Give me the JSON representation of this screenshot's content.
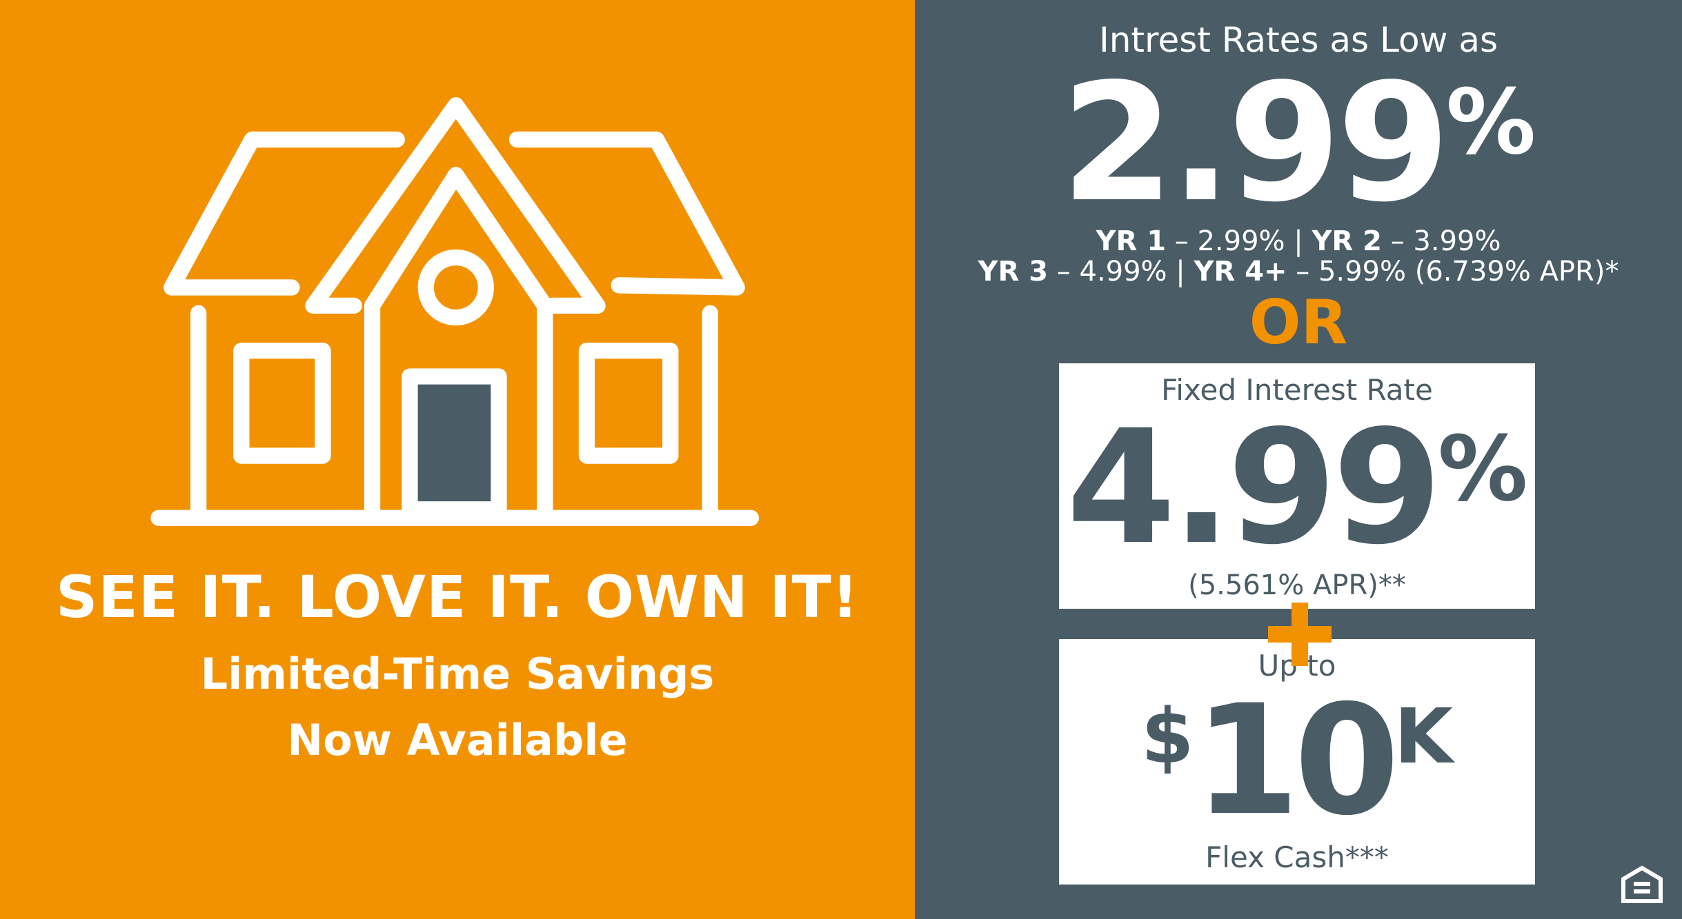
{
  "colors": {
    "orange": "#F39200",
    "slate": "#4A5C66",
    "white": "#FFFFFF"
  },
  "left": {
    "illustration": "house-outline-icon",
    "headline": "SEE IT. LOVE IT. OWN IT!",
    "sub_line1": "Limited-Time Savings",
    "sub_line2": "Now Available"
  },
  "right": {
    "intro": "Intrest Rates as Low as",
    "headline_rate": "2.99",
    "headline_pct": "%",
    "yr1_label": "YR 1",
    "yr1_value": " – 2.99% | ",
    "yr2_label": "YR 2",
    "yr2_value": " – 3.99%",
    "yr3_label": "YR 3",
    "yr3_value": " – 4.99% | ",
    "yr4_label": "YR 4+",
    "yr4_value": " – 5.99% (6.739% APR)*",
    "or": "OR",
    "fixed": {
      "label": "Fixed Interest Rate",
      "rate": "4.99",
      "pct": "%",
      "apr": "(5.561% APR)**"
    },
    "plus_icon": "plus-icon",
    "flex": {
      "label": "Up to",
      "dollar": "$",
      "amount": "10",
      "suffix": "K",
      "caption": "Flex Cash***"
    },
    "footer_icon": "equal-housing-opportunity-icon"
  }
}
